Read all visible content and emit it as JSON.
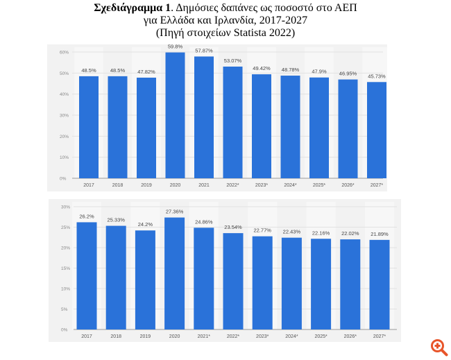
{
  "title": {
    "bold": "Σχεδιάγραμμα 1",
    "line1_rest": ". Δημόσιες δαπάνες ως ποσοστό στο ΑΕΠ",
    "line2": "για Ελλάδα και Ιρλανδία, 2017-2027",
    "line3": "(Πηγή στοιχείων Statista 2022)"
  },
  "chart_data": [
    {
      "type": "bar",
      "categories": [
        "2017",
        "2018",
        "2019",
        "2020",
        "2021",
        "2022*",
        "2023*",
        "2024*",
        "2025*",
        "2026*",
        "2027*"
      ],
      "values": [
        48.5,
        48.5,
        47.82,
        59.8,
        57.87,
        53.07,
        49.42,
        48.78,
        47.9,
        46.95,
        45.73
      ],
      "data_labels": [
        "48.5%",
        "48.5%",
        "47.82%",
        "59.8%",
        "57.87%",
        "53.07%",
        "49.42%",
        "48.78%",
        "47.9%",
        "46.95%",
        "45.73%"
      ],
      "yticks": [
        "0%",
        "10%",
        "20%",
        "30%",
        "40%",
        "50%",
        "60%"
      ],
      "ylim": [
        0,
        60
      ],
      "grid": true,
      "bar_color": "#2a72d9"
    },
    {
      "type": "bar",
      "categories": [
        "2017",
        "2018",
        "2019",
        "2020",
        "2021*",
        "2022*",
        "2023*",
        "2024*",
        "2025*",
        "2026*",
        "2027*"
      ],
      "values": [
        26.2,
        25.33,
        24.2,
        27.36,
        24.86,
        23.54,
        22.77,
        22.43,
        22.16,
        22.02,
        21.89
      ],
      "data_labels": [
        "26.2%",
        "25.33%",
        "24.2%",
        "27.36%",
        "24.86%",
        "23.54%",
        "22.77%",
        "22.43%",
        "22.16%",
        "22.02%",
        "21.89%"
      ],
      "yticks": [
        "0%",
        "5%",
        "10%",
        "15%",
        "20%",
        "25%",
        "30%"
      ],
      "ylim": [
        0,
        30
      ],
      "grid": true,
      "bar_color": "#2a72d9"
    }
  ],
  "zoom_icon": {
    "name": "zoom-in-icon",
    "color": "#e8552a"
  }
}
